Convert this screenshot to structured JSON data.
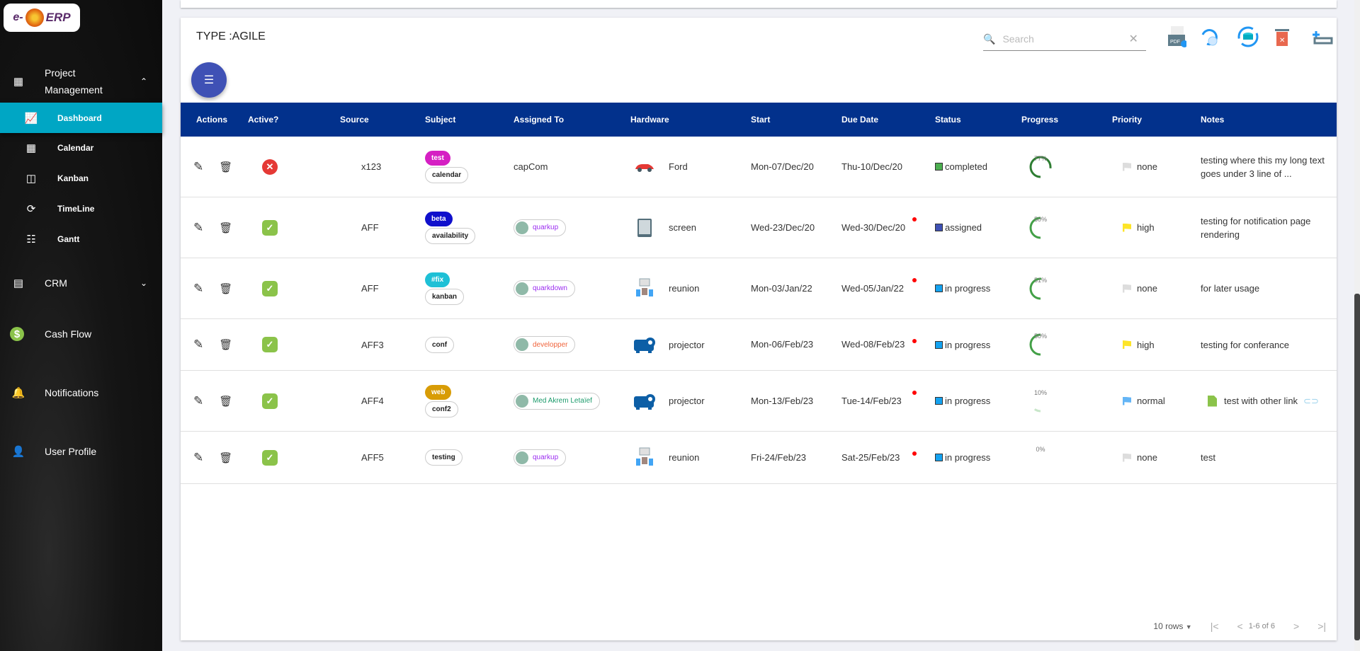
{
  "sidebar": {
    "logo": "e-ERP",
    "items": [
      {
        "label": "Project Management",
        "icon": "project-icon",
        "expanded": true
      },
      {
        "label": "Dashboard",
        "icon": "chart-icon",
        "active": true
      },
      {
        "label": "Calendar",
        "icon": "calendar-icon"
      },
      {
        "label": "Kanban",
        "icon": "kanban-icon"
      },
      {
        "label": "TimeLine",
        "icon": "timeline-icon"
      },
      {
        "label": "Gantt",
        "icon": "gantt-icon"
      },
      {
        "label": "CRM",
        "icon": "crm-icon",
        "expanded": false
      },
      {
        "label": "Cash Flow",
        "icon": "cash-icon"
      },
      {
        "label": "Notifications",
        "icon": "bell-icon"
      },
      {
        "label": "User Profile",
        "icon": "user-icon"
      }
    ]
  },
  "card": {
    "title": "TYPE :AGILE",
    "search_placeholder": "Search"
  },
  "table": {
    "headers": [
      "Actions",
      "Active?",
      "Source",
      "Subject",
      "Assigned To",
      "Hardware",
      "Start",
      "Due Date",
      "Status",
      "Progress",
      "Priority",
      "Notes"
    ],
    "rows": [
      {
        "active": false,
        "source": "x123",
        "tag": {
          "label": "test",
          "color": "#d51fc3"
        },
        "subject": "calendar",
        "assigned": {
          "name": "capCom",
          "chip": false
        },
        "hardware": {
          "name": "Ford",
          "icon": "car-icon"
        },
        "start": "Mon-07/Dec/20",
        "due": "Thu-10/Dec/20",
        "overdue": false,
        "status": {
          "label": "completed",
          "color": "#4caf50"
        },
        "progress": 77,
        "priority": {
          "label": "none",
          "color": "#dddddd"
        },
        "notes": "testing where this my long text goes under 3 line of ..."
      },
      {
        "active": true,
        "source": "AFF",
        "tag": {
          "label": "beta",
          "color": "#1010cc"
        },
        "subject": "availability",
        "assigned": {
          "name": "quarkup",
          "chip": true,
          "color": "#9b2df0"
        },
        "hardware": {
          "name": "screen",
          "icon": "tablet-icon"
        },
        "start": "Wed-23/Dec/20",
        "due": "Wed-30/Dec/20",
        "overdue": true,
        "status": {
          "label": "assigned",
          "color": "#3f51b5"
        },
        "progress": 50,
        "priority": {
          "label": "high",
          "color": "#fde428"
        },
        "notes": "testing for notification page rendering"
      },
      {
        "active": true,
        "source": "AFF",
        "tag": {
          "label": "#fix",
          "color": "#1ec0d6"
        },
        "subject": "kanban",
        "assigned": {
          "name": "quarkdown",
          "chip": true,
          "color": "#9b2df0"
        },
        "hardware": {
          "name": "reunion",
          "icon": "meeting-icon"
        },
        "start": "Mon-03/Jan/22",
        "due": "Wed-05/Jan/22",
        "overdue": true,
        "status": {
          "label": "in progress",
          "color": "#14a2f0"
        },
        "progress": 51,
        "priority": {
          "label": "none",
          "color": "#dddddd"
        },
        "notes": "for later usage"
      },
      {
        "active": true,
        "source": "AFF3",
        "tag": null,
        "subject": "conf",
        "assigned": {
          "name": "developper",
          "chip": true,
          "color": "#f0643c"
        },
        "hardware": {
          "name": "projector",
          "icon": "projector-icon"
        },
        "start": "Mon-06/Feb/23",
        "due": "Wed-08/Feb/23",
        "overdue": true,
        "status": {
          "label": "in progress",
          "color": "#14a2f0"
        },
        "progress": 50,
        "priority": {
          "label": "high",
          "color": "#fde428"
        },
        "notes": "testing for conferance"
      },
      {
        "active": true,
        "source": "AFF4",
        "tag": {
          "label": "web",
          "color": "#d89c06"
        },
        "subject": "conf2",
        "assigned": {
          "name": "Med Akrem Letaïef",
          "chip": true,
          "color": "#1d9b6c"
        },
        "hardware": {
          "name": "projector",
          "icon": "projector-icon"
        },
        "start": "Mon-13/Feb/23",
        "due": "Tue-14/Feb/23",
        "overdue": true,
        "status": {
          "label": "in progress",
          "color": "#14a2f0"
        },
        "progress": 10,
        "priority": {
          "label": "normal",
          "color": "#64b5f6"
        },
        "notes": "test with other link",
        "note_icon": "file-icon",
        "note_link": true
      },
      {
        "active": true,
        "source": "AFF5",
        "tag": null,
        "subject": "testing",
        "assigned": {
          "name": "quarkup",
          "chip": true,
          "color": "#9b2df0"
        },
        "hardware": {
          "name": "reunion",
          "icon": "meeting-icon"
        },
        "start": "Fri-24/Feb/23",
        "due": "Sat-25/Feb/23",
        "overdue": true,
        "status": {
          "label": "in progress",
          "color": "#14a2f0"
        },
        "progress": 0,
        "priority": {
          "label": "none",
          "color": "#dddddd"
        },
        "notes": "test"
      }
    ]
  },
  "pager": {
    "rows_label": "10 rows",
    "range": "1-6 of 6"
  },
  "colors": {
    "header": "#02318c",
    "sidebar_active": "#00a6c4",
    "fab": "#3f51b5"
  }
}
